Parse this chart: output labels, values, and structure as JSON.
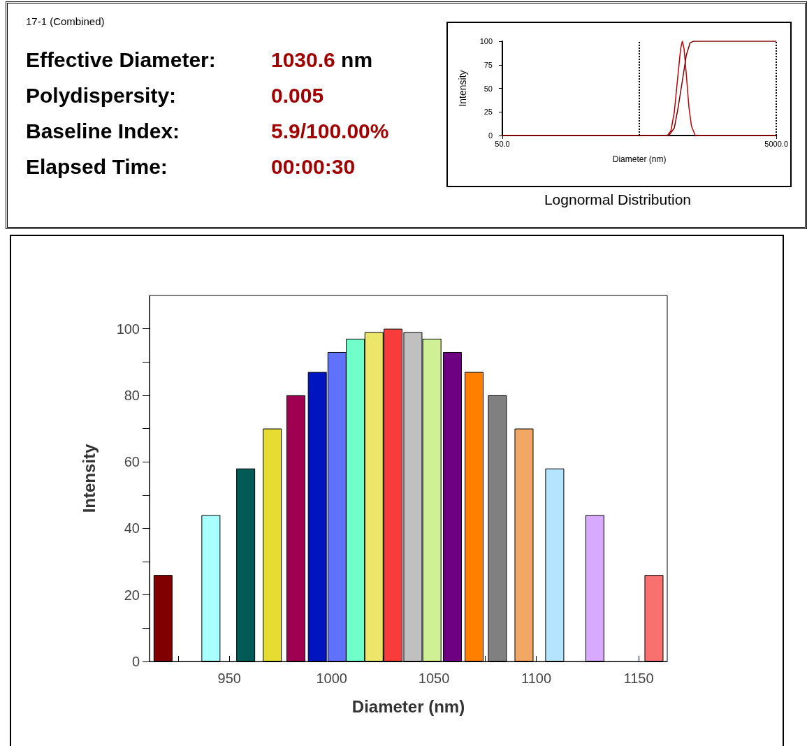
{
  "chart_data": [
    {
      "type": "other",
      "title": "17-1 (Combined)",
      "annotations": [
        "Effective Diameter:",
        "1030.6 nm",
        "Polydispersity:",
        "0.005",
        "Baseline Index:",
        "5.9/100.00%",
        "Elapsed Time:",
        "00:00:30"
      ]
    },
    {
      "type": "line",
      "title": "Lognormal Distribution",
      "xlabel": "Diameter (nm)",
      "ylabel": "Intensity",
      "log": "x",
      "xlim": [
        50,
        5000
      ],
      "xticks": [
        {
          "value": 50,
          "label": "50.0"
        },
        {
          "value": 5000,
          "label": "5000.0"
        }
      ],
      "ylim": [
        0,
        100
      ],
      "yticks": [
        0,
        25,
        50,
        75,
        100
      ],
      "ref_lines": [
        {
          "axis": "x",
          "value": 500,
          "color": "#000000",
          "line_style": "dotted"
        },
        {
          "axis": "x",
          "value": 5000,
          "color": "#000000",
          "line_style": "dotted"
        }
      ],
      "series": [
        {
          "color": "#c00000",
          "x": [
            50,
            800,
            850,
            900,
            950,
            1000,
            1030,
            1060,
            1100,
            1150,
            1200,
            1280,
            5000
          ],
          "values": [
            0,
            0,
            5,
            25,
            60,
            92,
            100,
            92,
            65,
            30,
            10,
            0,
            0
          ]
        },
        {
          "color": "#800000",
          "x": [
            50,
            820,
            900,
            960,
            1030,
            1100,
            1170,
            1240,
            5000
          ],
          "values": [
            0,
            0,
            8,
            30,
            58,
            85,
            98,
            100,
            100
          ]
        }
      ]
    },
    {
      "type": "bar",
      "xlabel": "Diameter (nm)",
      "ylabel": "Intensity",
      "xlim": [
        911,
        1164
      ],
      "xticks": [
        {
          "value": 925,
          "label": null
        },
        950,
        {
          "value": 975,
          "label": null
        },
        1000,
        {
          "value": 1025,
          "label": null
        },
        1050,
        {
          "value": 1075,
          "label": null
        },
        1100,
        {
          "value": 1125,
          "label": null
        },
        1150
      ],
      "ylim": [
        0,
        110
      ],
      "yticks": [
        0,
        {
          "value": 10,
          "label": null
        },
        20,
        {
          "value": 30,
          "label": null
        },
        40,
        {
          "value": 50,
          "label": null
        },
        60,
        {
          "value": 70,
          "label": null
        },
        80,
        {
          "value": 90,
          "label": null
        },
        100
      ],
      "x": [
        917.6,
        941,
        958,
        971,
        982.5,
        993,
        1002.6,
        1011.6,
        1020.7,
        1030,
        1039.7,
        1049,
        1059,
        1069.6,
        1081,
        1094,
        1109,
        1128.6,
        1157.5
      ],
      "values": [
        26,
        44,
        58,
        70,
        80,
        87,
        93,
        97,
        99,
        100,
        99,
        97,
        93,
        87,
        80,
        70,
        58,
        44,
        26
      ],
      "colors": [
        "#800000",
        "#aaffff",
        "#005a55",
        "#e6dc32",
        "#a00050",
        "#0014c0",
        "#6070ff",
        "#70ffc8",
        "#ece66a",
        "#f83c3c",
        "#c0c0c0",
        "#d0f096",
        "#6e0082",
        "#ff8000",
        "#808080",
        "#f0a864",
        "#b4e4ff",
        "#d8aaff",
        "#f87070"
      ]
    }
  ]
}
